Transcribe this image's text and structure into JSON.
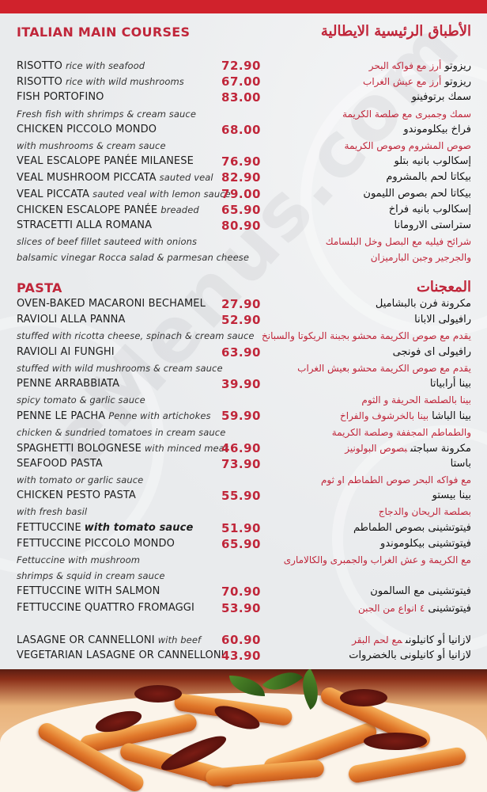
{
  "colors": {
    "accent": "#d0222c",
    "price": "#c0263a",
    "text": "#1e1e1e",
    "background": "#eceef0"
  },
  "watermark": "eMenus.com",
  "sections": [
    {
      "title_en": "ITALIAN MAIN COURSES",
      "title_ar": "الأطباق الرئيسية الايطالية",
      "rows": [
        {
          "name": "RISOTTO",
          "desc": "rice with seafood",
          "price": "72.90",
          "ar_name": "ريزوتو",
          "ar_desc": "أرز مع فواكه البحر"
        },
        {
          "name": "RISOTTO",
          "desc": "rice with wild mushrooms",
          "price": "67.00",
          "ar_name": "ريزوتو",
          "ar_desc": "أرز مع عيش الغراب"
        },
        {
          "name": "FISH PORTOFINO",
          "price": "83.00",
          "ar_name": "سمك برتوفينو"
        },
        {
          "type": "desc",
          "en": "Fresh fish with shrimps & cream sauce",
          "ar": "سمك وجمبرى مع صلصة الكريمة"
        },
        {
          "name": "CHICKEN PICCOLO MONDO",
          "price": "68.00",
          "ar_name": "فراخ بيكلوموندو"
        },
        {
          "type": "desc",
          "en": "with mushrooms & cream sauce",
          "ar": "صوص المشروم وصوص الكريمة"
        },
        {
          "name": "VEAL ESCALOPE PANÉE MILANESE",
          "price": "76.90",
          "ar_name": "إسكالوب بانيه بتلو"
        },
        {
          "name": "VEAL MUSHROOM PICCATA",
          "desc": "sauted veal",
          "price": "82.90",
          "ar_name": "بيكاتا لحم بالمشروم"
        },
        {
          "name": "VEAL PICCATA",
          "desc": "sauted veal with lemon sauce",
          "price": "79.00",
          "ar_name": "بيكاتا لحم بصوص الليمون"
        },
        {
          "name": "CHICKEN ESCALOPE PANÉE",
          "desc": "breaded",
          "price": "65.90",
          "ar_name": "إسكالوب بانيه فراخ"
        },
        {
          "name": "STRACETTI ALLA ROMANA",
          "price": "80.90",
          "ar_name": "ستراستى الارومانا"
        },
        {
          "type": "desc",
          "en": "slices of beef fillet sauteed with onions",
          "ar": "شرائح فيليه مع البصل وخل البلسامك"
        },
        {
          "type": "desc",
          "en": "balsamic vinegar Rocca salad & parmesan cheese",
          "ar": "والجرجير وجبن البارميزان"
        }
      ]
    },
    {
      "title_en": "PASTA",
      "title_ar": "المعجنات",
      "rows": [
        {
          "name": "OVEN-BAKED MACARONI BECHAMEL",
          "price": "27.90",
          "ar_name": "مكرونة فرن بالبشاميل"
        },
        {
          "name": "RAVIOLI ALLA PANNA",
          "price": "52.90",
          "ar_name": "رافيولى الابانا"
        },
        {
          "type": "desc",
          "en": "stuffed with ricotta cheese, spinach & cream sauce",
          "ar": "يقدم مع صوص الكريمة محشو بجبنة الريكوتا والسبانخ"
        },
        {
          "name": "RAVIOLI AI FUNGHI",
          "price": "63.90",
          "ar_name": "رافيولى اى فونجى"
        },
        {
          "type": "desc",
          "en": "stuffed with wild mushrooms & cream sauce",
          "ar": "يقدم مع صوص الكريمة محشو بعيش الغراب"
        },
        {
          "name": "PENNE ARRABBIATA",
          "price": "39.90",
          "ar_name": "بينا أرابياتا"
        },
        {
          "type": "desc",
          "en": "spicy tomato & garlic sauce",
          "ar": "بينا بالصلصة الحريفة و الثوم"
        },
        {
          "name": "PENNE LE PACHA",
          "desc": "Penne with artichokes",
          "price": "59.90",
          "ar_name": "بينا الباشا",
          "ar_desc": "بينا بالخرشوف والفراخ"
        },
        {
          "type": "desc",
          "en": "chicken & sundried tomatoes in cream sauce",
          "ar": "والطماطم المجففة وصلصة الكريمة"
        },
        {
          "name": "SPAGHETTI BOLOGNESE",
          "desc": "with minced meat",
          "price": "46.90",
          "ar_name": "مكرونة سباجتى",
          "ar_desc": "بصوص البولونيز"
        },
        {
          "name": "SEAFOOD PASTA",
          "price": "73.90",
          "ar_name": "باستا"
        },
        {
          "type": "desc",
          "en": "with tomato or garlic sauce",
          "ar": "مع فواكه البحر  صوص الطماطم او ثوم"
        },
        {
          "name": "CHICKEN PESTO PASTA",
          "price": "55.90",
          "ar_name": "بينا بيستو"
        },
        {
          "type": "desc",
          "en": "with fresh basil",
          "ar": "بصلصة الريحان والدجاج"
        },
        {
          "name": "FETTUCCINE",
          "desc": "with tomato sauce",
          "desc_bold": true,
          "price": "51.90",
          "ar_name": "فيتوتشينى بصوص الطماطم"
        },
        {
          "name": "FETTUCCINE PICCOLO MONDO",
          "price": "65.90",
          "ar_name": "فيتوتشينى بيكلوموندو"
        },
        {
          "type": "desc",
          "en": "Fettuccine with mushroom",
          "ar": "مع الكريمة و عش الغراب والجمبرى والكالامارى"
        },
        {
          "type": "desc",
          "en": " shrimps & squid in cream sauce",
          "ar": ""
        },
        {
          "name": "FETTUCCINE WITH SALMON",
          "price": "70.90",
          "ar_name": "فيتوتشينى مع السالمون"
        },
        {
          "name": "FETTUCCINE QUATTRO FROMAGGI",
          "price": "53.90",
          "ar_name": "فيتوتشينى",
          "ar_desc": "٤ انواع من الجبن"
        }
      ]
    },
    {
      "title_en": "",
      "title_ar": "",
      "rows": [
        {
          "name": "LASAGNE OR CANNELLONI",
          "desc": "with beef",
          "price": "60.90",
          "ar_name": "لازانيا  أو كانيلونى",
          "ar_desc": "مع لحم البقر"
        },
        {
          "name": "VEGETARIAN LASAGNE OR CANNELLONI",
          "price": "43.90",
          "ar_name": "لازانيا أو كانيلونى بالخضروات"
        }
      ]
    }
  ]
}
